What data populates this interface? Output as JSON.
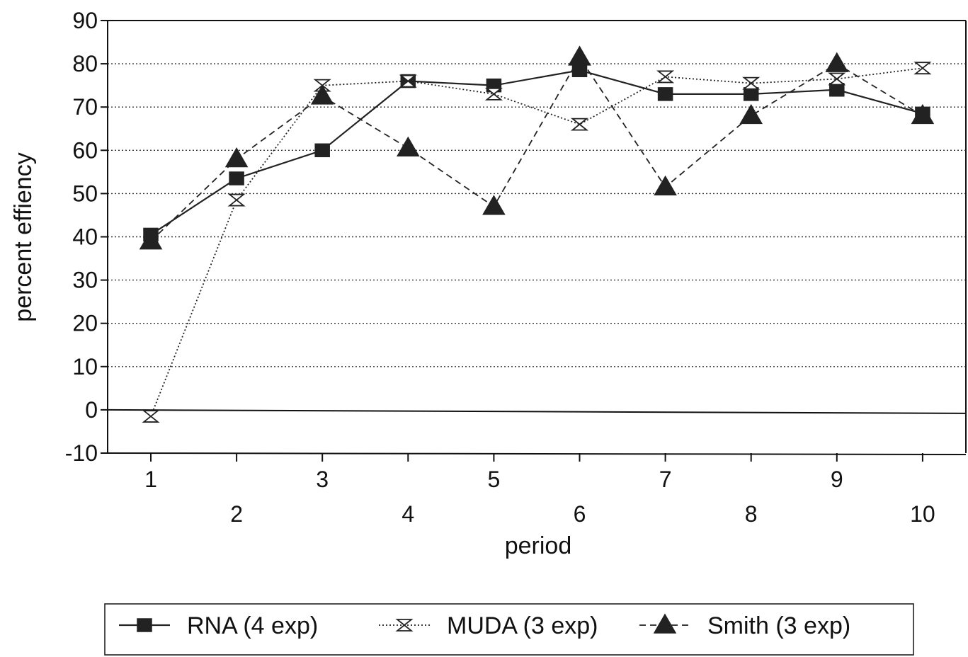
{
  "chart_data": {
    "type": "line",
    "title": "",
    "xlabel": "period",
    "ylabel": "percent effiency",
    "x": [
      1,
      2,
      3,
      4,
      5,
      6,
      7,
      8,
      9,
      10
    ],
    "x_tick_labels": [
      "1",
      "2",
      "3",
      "4",
      "5",
      "6",
      "7",
      "8",
      "9",
      "10"
    ],
    "ylim": [
      -10,
      90
    ],
    "y_ticks": [
      -10,
      0,
      10,
      20,
      30,
      40,
      50,
      60,
      70,
      80,
      90
    ],
    "y_tick_labels": [
      "-10",
      "0",
      "10",
      "20",
      "30",
      "40",
      "50",
      "60",
      "70",
      "80",
      "90"
    ],
    "grid": "horizontal dotted",
    "legend_position": "bottom",
    "series": [
      {
        "name": "RNA (4 exp)",
        "marker": "square",
        "line": "solid",
        "color": "#222222",
        "values": [
          40.5,
          53.5,
          60,
          76,
          75,
          78.5,
          73,
          73,
          74,
          68.5
        ]
      },
      {
        "name": "MUDA (3 exp)",
        "marker": "hourglass",
        "line": "dotted",
        "color": "#222222",
        "values": [
          -1.5,
          48.5,
          75,
          76,
          73,
          66,
          77,
          75.5,
          76.5,
          79
        ]
      },
      {
        "name": "Smith (3 exp)",
        "marker": "triangle",
        "line": "dashed",
        "color": "#222222",
        "values": [
          39,
          58,
          72.5,
          60.5,
          47,
          81.5,
          51.5,
          68,
          80,
          68
        ]
      }
    ]
  }
}
